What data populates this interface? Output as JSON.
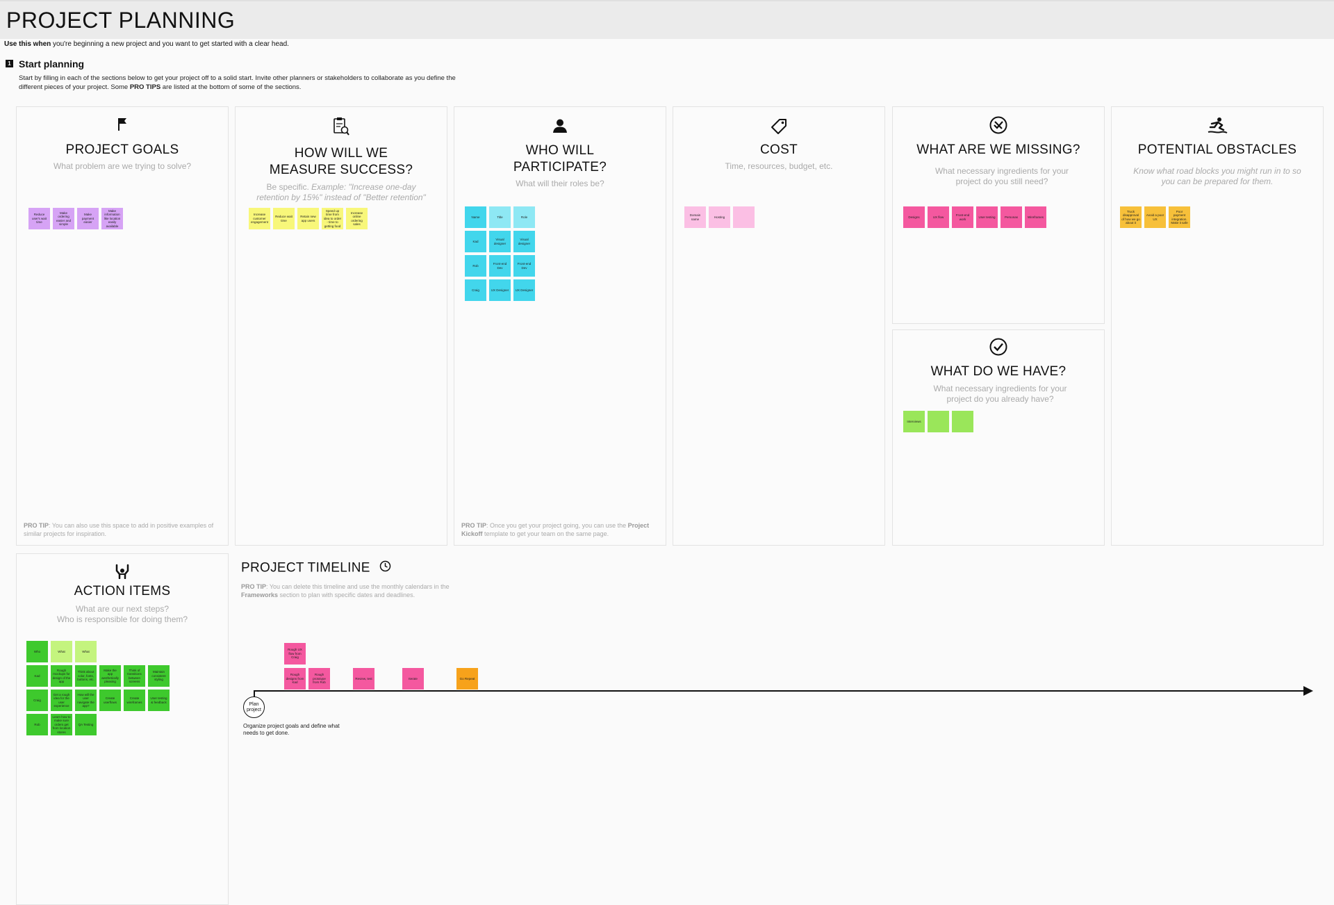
{
  "header": {
    "title": "PROJECT PLANNING",
    "subtitle_bold": "Use this when",
    "subtitle_rest": " you're beginning a new project and you want to get started with a clear head."
  },
  "step": {
    "number": "1",
    "title": "Start planning",
    "desc_1": "Start by filling in each of the sections below to get your project off to a solid start. Invite other planners or stakeholders to collaborate as you define the different pieces of your project. Some ",
    "desc_bold": "PRO TIPS",
    "desc_2": " are listed at the bottom of some of the sections."
  },
  "panels": {
    "goals": {
      "icon": "flag-icon",
      "title": "PROJECT GOALS",
      "subtitle": "What problem are we trying to solve?",
      "notes": [
        "Reduce user's wait time",
        "Make ordering easier and simple",
        "Make payment easier",
        "Make information like location easily available"
      ],
      "tip_bold": "PRO TIP",
      "tip_text": ": You can also use this space to add in positive examples of similar projects for inspiration."
    },
    "success": {
      "icon": "clipboard-search-icon",
      "title_1": "HOW WILL WE",
      "title_2": "MEASURE SUCCESS?",
      "subtitle_plain": "Be specific. ",
      "subtitle_italic": "Example: \"Increase one-day retention by 15%\" instead of \"Better retention\"",
      "notes": [
        "Increase customer engagement",
        "Reduce wait time",
        "Retain new app users",
        "Speed up time from idea to order - time to getting food",
        "Increase online ordering sales"
      ]
    },
    "participate": {
      "icon": "person-icon",
      "title_1": "WHO WILL",
      "title_2": "PARTICIPATE?",
      "subtitle": "What will their roles be?",
      "headers": [
        "Name",
        "Title",
        "Role"
      ],
      "rows": [
        [
          "Kad",
          "Visual designer",
          "Visual designer"
        ],
        [
          "Rob",
          "Front-end Dev",
          "Front-end Dev"
        ],
        [
          "Craig",
          "UX Designer",
          "UX Designer"
        ]
      ],
      "tip_bold": "PRO TIP",
      "tip_text": ": Once you get your project going, you can use the ",
      "tip_bold_2": "Project Kickoff",
      "tip_text_2": " template to get your team on the same page."
    },
    "cost": {
      "icon": "tag-icon",
      "title": "COST",
      "subtitle": "Time, resources, budget, etc.",
      "notes": [
        "Domain name",
        "Hosting",
        ""
      ]
    },
    "missing": {
      "icon": "circle-x-check-icon",
      "title": "WHAT ARE WE MISSING?",
      "subtitle": "What necessary ingredients for your project do you still need?",
      "notes": [
        "Designs",
        "UX flow",
        "Front-end work",
        "User testing",
        "Personas",
        "Wireframes"
      ]
    },
    "have": {
      "icon": "circle-check-icon",
      "title": "WHAT DO WE HAVE?",
      "subtitle": "What necessary ingredients for your project do you already have?",
      "notes": [
        "Interviews",
        "",
        ""
      ]
    },
    "obstacles": {
      "icon": "person-slipping-icon",
      "title": "POTENTIAL OBSTACLES",
      "subtitle": "Know what road blocks you might run in to so you can be prepared for them.",
      "notes": [
        "Truck disapproval of how we go about it",
        "Avoid a poor UX",
        "Poor payment integration. Make it safe"
      ]
    },
    "actions": {
      "icon": "raised-hands-icon",
      "title": "ACTION ITEMS",
      "subtitle_1": "What are our next steps?",
      "subtitle_2": "Who is responsible for doing them?",
      "headers": [
        "Who",
        "What",
        "What"
      ],
      "rows": [
        [
          "Kad",
          "Rough mockups for design of the app",
          "Think about color, fonts, buttons, etc.",
          "Make the app aesthetically pleasing",
          "Think of transitions between screens",
          "Maintain consistent styling"
        ],
        [
          "Craig",
          "Get a rough idea for the user experience",
          "How will the user navigate the app?",
          "Create userflows",
          "Create wireframes",
          "User testing & feedback"
        ],
        [
          "Rob",
          "Learn how to make sure orders get from location stores",
          "QA Testing"
        ]
      ]
    }
  },
  "timeline": {
    "title": "PROJECT TIMELINE",
    "icon": "clock-icon",
    "tip_bold": "PRO TIP",
    "tip_text": ": You can delete this timeline and use the monthly calendars in the ",
    "tip_bold_2": "Frameworks",
    "tip_text_2": " section to plan with specific dates and deadlines.",
    "start_label": "Plan project",
    "start_note": "Organize project goals and define what needs to get done.",
    "notes": {
      "top": "Rough UX flow from Craig",
      "row": [
        "Rough designs from Kad",
        "Rough prototype from Rob",
        "Review, test",
        "Iterate",
        "Go Repeat"
      ]
    }
  },
  "colors": {
    "goals": "#d6a3f5",
    "success": "#f8f77a",
    "participate": "#42d6ec",
    "cost": "#fbbfe4",
    "missing": "#f4589f",
    "obstacles": "#f7c03a",
    "have": "#9ae65a",
    "actions": "#3ec92d",
    "timeline_final": "#f7a21b"
  }
}
